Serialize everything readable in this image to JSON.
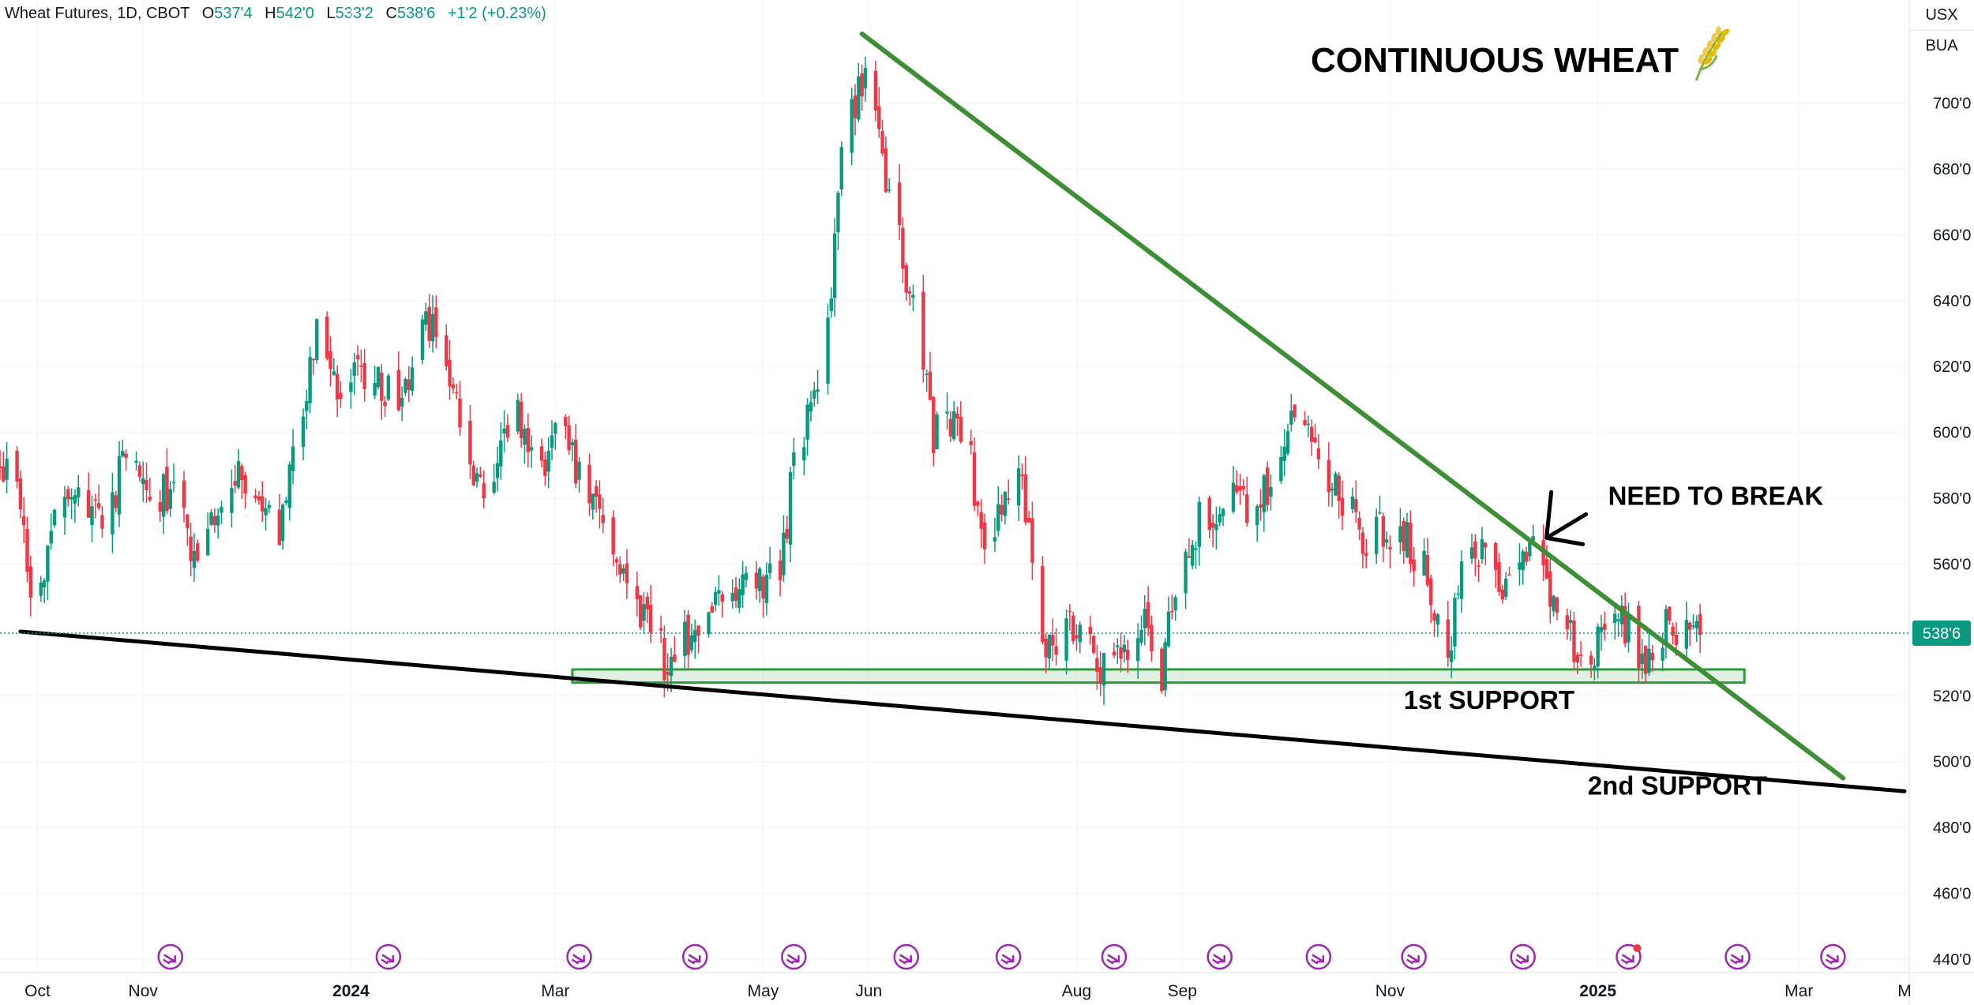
{
  "legend": {
    "symbol": "Wheat Futures, 1D, CBOT",
    "open_label": "O",
    "open": "537'4",
    "high_label": "H",
    "high": "542'0",
    "low_label": "L",
    "low": "533'2",
    "close_label": "C",
    "close": "538'6",
    "change": "+1'2 (+0.23%)"
  },
  "units": {
    "currency": "USX",
    "unit": "BUA"
  },
  "colors": {
    "up": "#089981",
    "down": "#f23645",
    "trendline": "#3d8f35",
    "support_box": "#2e9a3a",
    "support_line": "#000000",
    "event_icon": "#9c27b0",
    "grid": "#f0f3fa"
  },
  "chart_data": {
    "type": "candlestick",
    "title": "CONTINUOUS WHEAT",
    "title_icon": "wheat-emoji",
    "current_price_label": "538'6",
    "y_axis": {
      "ticks": [
        440,
        460,
        480,
        500,
        520,
        540,
        560,
        580,
        600,
        620,
        640,
        660,
        680,
        700
      ],
      "tick_labels": [
        "440'0",
        "460'0",
        "480'0",
        "500'0",
        "520'0",
        "540'0",
        "560'0",
        "580'0",
        "600'0",
        "620'0",
        "640'0",
        "660'0",
        "680'0",
        "700'0"
      ],
      "range": [
        433,
        728
      ]
    },
    "x_axis": {
      "range": [
        "2023-09-20",
        "2025-04-01"
      ],
      "ticks": [
        {
          "date": "2023-10-01",
          "label": "Oct",
          "bold": false
        },
        {
          "date": "2023-11-01",
          "label": "Nov",
          "bold": false
        },
        {
          "date": "2024-01-01",
          "label": "2024",
          "bold": true
        },
        {
          "date": "2024-03-01",
          "label": "Mar",
          "bold": false
        },
        {
          "date": "2024-05-01",
          "label": "May",
          "bold": false
        },
        {
          "date": "2024-06-01",
          "label": "Jun",
          "bold": false
        },
        {
          "date": "2024-08-01",
          "label": "Aug",
          "bold": false
        },
        {
          "date": "2024-09-01",
          "label": "Sep",
          "bold": false
        },
        {
          "date": "2024-11-01",
          "label": "Nov",
          "bold": false
        },
        {
          "date": "2025-01-01",
          "label": "2025",
          "bold": true
        },
        {
          "date": "2025-03-01",
          "label": "Mar",
          "bold": false
        },
        {
          "date": "2025-04-01",
          "label": "M",
          "bold": false
        }
      ]
    },
    "close_path": [
      [
        "2023-09-20",
        589
      ],
      [
        "2023-09-27",
        578
      ],
      [
        "2023-09-29",
        545
      ],
      [
        "2023-10-05",
        570
      ],
      [
        "2023-10-12",
        580
      ],
      [
        "2023-10-20",
        572
      ],
      [
        "2023-10-27",
        592
      ],
      [
        "2023-11-03",
        578
      ],
      [
        "2023-11-10",
        582
      ],
      [
        "2023-11-16",
        560
      ],
      [
        "2023-11-24",
        575
      ],
      [
        "2023-11-29",
        590
      ],
      [
        "2023-12-06",
        580
      ],
      [
        "2023-12-11",
        565
      ],
      [
        "2023-12-15",
        598
      ],
      [
        "2023-12-20",
        618
      ],
      [
        "2023-12-22",
        636
      ],
      [
        "2023-12-29",
        612
      ],
      [
        "2024-01-05",
        620
      ],
      [
        "2024-01-12",
        612
      ],
      [
        "2024-01-19",
        615
      ],
      [
        "2024-01-23",
        634
      ],
      [
        "2024-01-27",
        628
      ],
      [
        "2024-02-02",
        601
      ],
      [
        "2024-02-09",
        582
      ],
      [
        "2024-02-14",
        598
      ],
      [
        "2024-02-20",
        604
      ],
      [
        "2024-02-26",
        588
      ],
      [
        "2024-03-01",
        600
      ],
      [
        "2024-03-06",
        592
      ],
      [
        "2024-03-12",
        582
      ],
      [
        "2024-03-18",
        560
      ],
      [
        "2024-03-25",
        548
      ],
      [
        "2024-03-29",
        545
      ],
      [
        "2024-04-03",
        528
      ],
      [
        "2024-04-08",
        538
      ],
      [
        "2024-04-12",
        540
      ],
      [
        "2024-04-18",
        552
      ],
      [
        "2024-04-25",
        556
      ],
      [
        "2024-04-30",
        554
      ],
      [
        "2024-05-06",
        560
      ],
      [
        "2024-05-10",
        588
      ],
      [
        "2024-05-15",
        610
      ],
      [
        "2024-05-21",
        640
      ],
      [
        "2024-05-24",
        685
      ],
      [
        "2024-05-28",
        700
      ],
      [
        "2024-05-31",
        707
      ],
      [
        "2024-06-04",
        690
      ],
      [
        "2024-06-07",
        668
      ],
      [
        "2024-06-12",
        648
      ],
      [
        "2024-06-17",
        618
      ],
      [
        "2024-06-20",
        600
      ],
      [
        "2024-06-26",
        605
      ],
      [
        "2024-07-01",
        590
      ],
      [
        "2024-07-05",
        565
      ],
      [
        "2024-07-10",
        580
      ],
      [
        "2024-07-15",
        588
      ],
      [
        "2024-07-19",
        560
      ],
      [
        "2024-07-23",
        530
      ],
      [
        "2024-07-29",
        540
      ],
      [
        "2024-08-02",
        545
      ],
      [
        "2024-08-07",
        525
      ],
      [
        "2024-08-12",
        535
      ],
      [
        "2024-08-16",
        530
      ],
      [
        "2024-08-21",
        540
      ],
      [
        "2024-08-26",
        528
      ],
      [
        "2024-08-29",
        545
      ],
      [
        "2024-09-03",
        565
      ],
      [
        "2024-09-06",
        575
      ],
      [
        "2024-09-11",
        570
      ],
      [
        "2024-09-16",
        590
      ],
      [
        "2024-09-20",
        575
      ],
      [
        "2024-09-25",
        580
      ],
      [
        "2024-10-01",
        596
      ],
      [
        "2024-10-04",
        611
      ],
      [
        "2024-10-09",
        600
      ],
      [
        "2024-10-15",
        585
      ],
      [
        "2024-10-21",
        578
      ],
      [
        "2024-10-25",
        565
      ],
      [
        "2024-10-31",
        572
      ],
      [
        "2024-11-06",
        568
      ],
      [
        "2024-11-12",
        555
      ],
      [
        "2024-11-18",
        535
      ],
      [
        "2024-11-22",
        555
      ],
      [
        "2024-11-27",
        565
      ],
      [
        "2024-12-03",
        552
      ],
      [
        "2024-12-09",
        558
      ],
      [
        "2024-12-13",
        562
      ],
      [
        "2024-12-19",
        548
      ],
      [
        "2024-12-23",
        538
      ],
      [
        "2024-12-30",
        532
      ],
      [
        "2025-01-06",
        545
      ],
      [
        "2025-01-09",
        540
      ],
      [
        "2025-01-15",
        530
      ],
      [
        "2025-01-21",
        542
      ],
      [
        "2025-01-27",
        537
      ],
      [
        "2025-01-31",
        539
      ]
    ],
    "lines": [
      {
        "name": "downtrend",
        "from": [
          "2024-05-30",
          721
        ],
        "to": [
          "2025-03-14",
          495
        ]
      },
      {
        "name": "2nd-support",
        "from": [
          "2023-09-26",
          539.5
        ],
        "to": [
          "2025-04-01",
          491
        ]
      }
    ],
    "zones": [
      {
        "name": "1st-support",
        "from": "2024-03-06",
        "to": "2025-02-13",
        "low": 524,
        "high": 528
      }
    ],
    "annotations": [
      {
        "text": "NEED TO BREAK",
        "date": "2025-01-04",
        "price": 578
      },
      {
        "text": "1st SUPPORT",
        "date": "2024-11-05",
        "price": 516
      },
      {
        "text": "2nd SUPPORT",
        "date": "2024-12-29",
        "price": 490
      }
    ],
    "event_markers": [
      "2023-11-09",
      "2024-01-12",
      "2024-03-08",
      "2024-04-11",
      "2024-05-10",
      "2024-06-12",
      "2024-07-12",
      "2024-08-12",
      "2024-09-12",
      "2024-10-11",
      "2024-11-08",
      "2024-12-10",
      "2025-01-10",
      "2025-02-11",
      "2025-03-11"
    ]
  }
}
